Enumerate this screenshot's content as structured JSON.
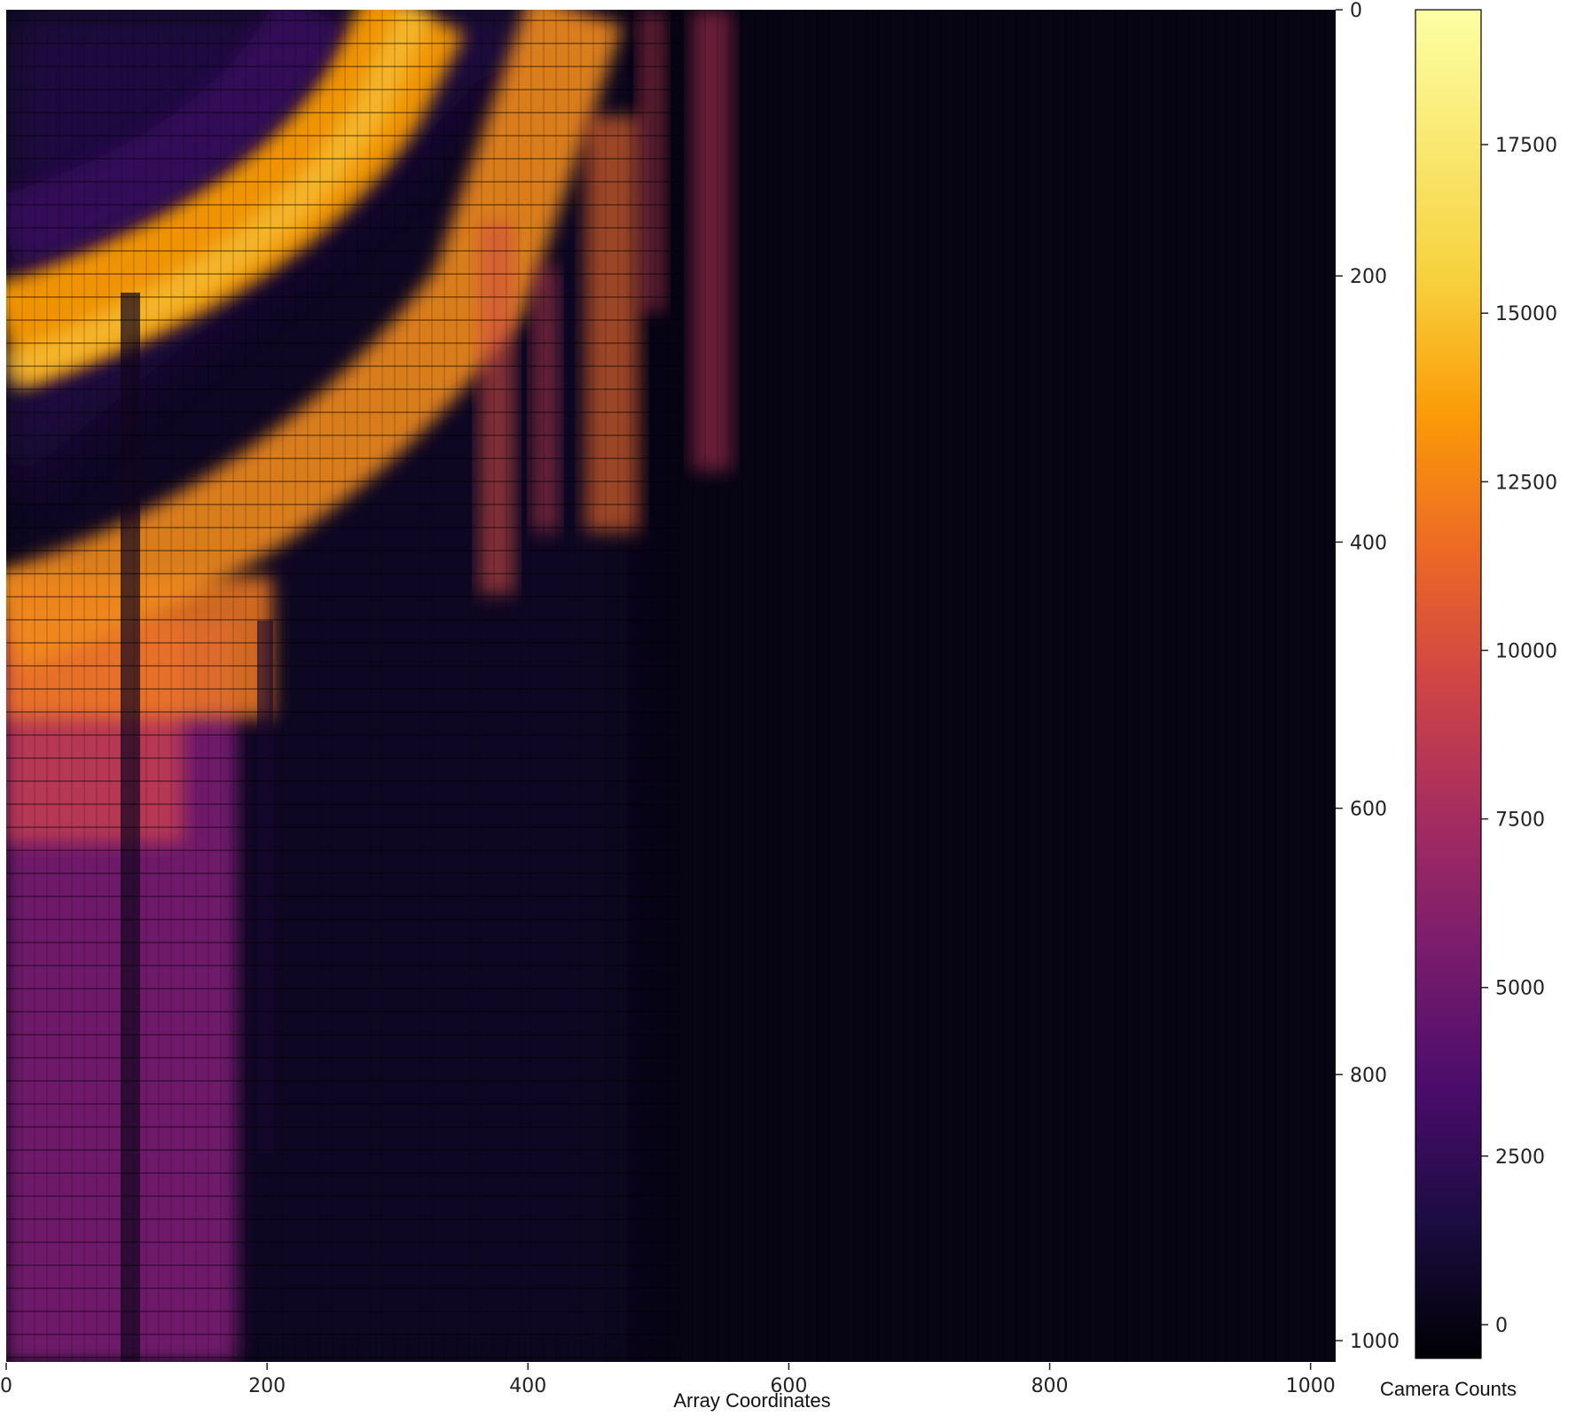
{
  "chart_data": {
    "type": "heatmap",
    "title": "",
    "xlabel": "Array Coordinates",
    "ylabel": "",
    "xlim": [
      0,
      1024
    ],
    "ylim": [
      1024,
      0
    ],
    "x_ticks": [
      0,
      200,
      400,
      600,
      800,
      1000
    ],
    "y_ticks": [
      0,
      200,
      400,
      600,
      800,
      1000
    ],
    "y_axis_side": "right",
    "grid": false,
    "colormap": "inferno",
    "colorbar": {
      "label": "Camera Counts",
      "range": [
        -500,
        19500
      ],
      "ticks": [
        0,
        2500,
        5000,
        7500,
        10000,
        12500,
        15000,
        17500
      ]
    },
    "features": [
      {
        "name": "upper bright arc",
        "x_range": [
          0,
          380
        ],
        "y_range": [
          0,
          380
        ],
        "approx_counts": 16500
      },
      {
        "name": "lower bright band",
        "x_range": [
          0,
          500
        ],
        "y_range": [
          300,
          560
        ],
        "approx_counts": 15500
      },
      {
        "name": "left gradient region",
        "x_range": [
          0,
          180
        ],
        "y_range": [
          560,
          1024
        ],
        "approx_counts": 7000
      },
      {
        "name": "background",
        "x_range": [
          400,
          1024
        ],
        "y_range": [
          0,
          1024
        ],
        "approx_counts": 800
      }
    ]
  }
}
